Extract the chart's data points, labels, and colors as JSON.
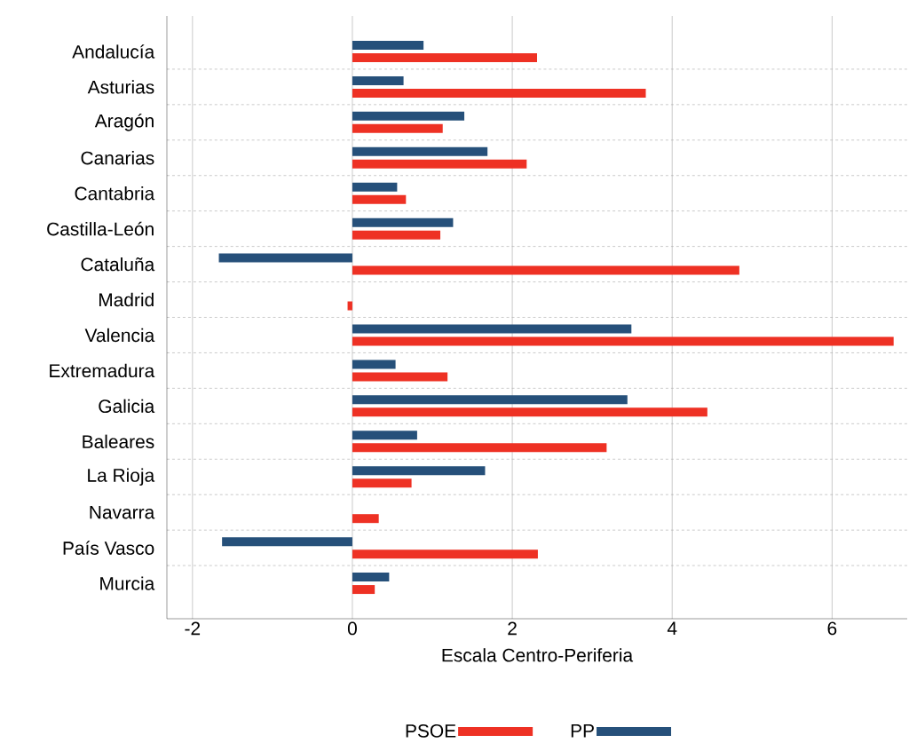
{
  "chart_data": {
    "type": "bar",
    "orientation": "horizontal",
    "categories": [
      "Andalucía",
      "Asturias",
      "Aragón",
      "Canarias",
      "Cantabria",
      "Castilla-León",
      "Cataluña",
      "Madrid",
      "Valencia",
      "Extremadura",
      "Galicia",
      "Baleares",
      "La Rioja",
      "Navarra",
      "País Vasco",
      "Murcia"
    ],
    "series": [
      {
        "name": "PSOE",
        "color": "#ee3124",
        "values": [
          2.31,
          3.67,
          1.13,
          2.18,
          0.67,
          1.1,
          4.84,
          -0.06,
          6.77,
          1.19,
          4.44,
          3.18,
          0.74,
          0.33,
          2.32,
          0.28
        ]
      },
      {
        "name": "PP",
        "color": "#26507a",
        "values": [
          0.89,
          0.64,
          1.4,
          1.69,
          0.56,
          1.26,
          -1.67,
          null,
          3.49,
          0.54,
          3.44,
          0.81,
          1.66,
          null,
          -1.63,
          0.46
        ]
      }
    ],
    "xlim": [
      -2.32,
      6.94
    ],
    "xticks": [
      -2,
      0,
      2,
      4,
      6
    ],
    "xlabel": "Escala Centro-Periferia",
    "grid": true,
    "legend": "bottom"
  }
}
